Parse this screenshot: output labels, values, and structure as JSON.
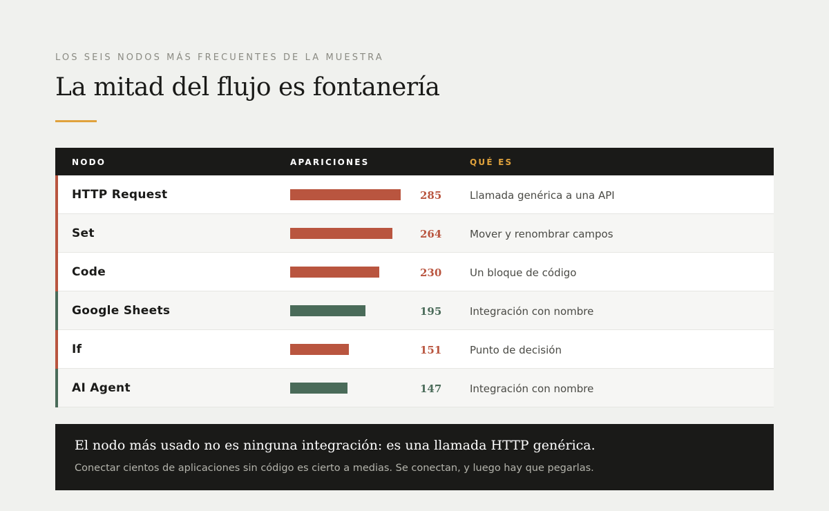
{
  "header": {
    "eyebrow": "LOS SEIS NODOS MÁS FRECUENTES DE LA MUESTRA",
    "title": "La mitad del flujo es fontanería"
  },
  "table": {
    "columns": {
      "node": "NODO",
      "count": "APARICIONES",
      "what": "QUÉ ES"
    }
  },
  "chart_data": {
    "type": "bar",
    "orientation": "horizontal",
    "title": "La mitad del flujo es fontanería",
    "max_reference": 285,
    "rows": [
      {
        "node": "HTTP Request",
        "count": 285,
        "description": "Llamada genérica a una API",
        "category": "plumbing"
      },
      {
        "node": "Set",
        "count": 264,
        "description": "Mover y renombrar campos",
        "category": "plumbing"
      },
      {
        "node": "Code",
        "count": 230,
        "description": "Un bloque de código",
        "category": "plumbing"
      },
      {
        "node": "Google Sheets",
        "count": 195,
        "description": "Integración con nombre",
        "category": "integration"
      },
      {
        "node": "If",
        "count": 151,
        "description": "Punto de decisión",
        "category": "plumbing"
      },
      {
        "node": "AI Agent",
        "count": 147,
        "description": "Integración con nombre",
        "category": "integration"
      }
    ]
  },
  "colors": {
    "plumbing": "#b9553f",
    "integration": "#4a6b59",
    "accent": "#e0a23c",
    "dark": "#1a1a18"
  },
  "callout": {
    "main": "El nodo más usado no es ninguna integración: es una llamada HTTP genérica.",
    "sub": "Conectar cientos de aplicaciones sin código es cierto a medias. Se conectan, y luego hay que pegarlas."
  }
}
